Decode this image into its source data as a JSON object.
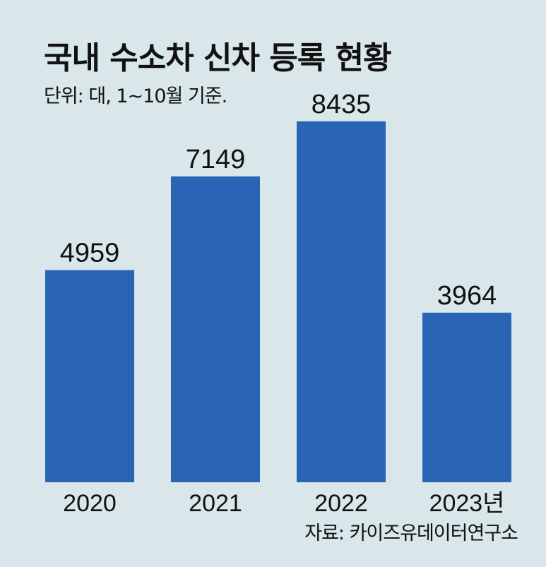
{
  "title": "국내 수소차 신차 등록 현황",
  "subtitle": "단위: 대, 1~10월 기준.",
  "source": "자료: 카이즈유데이터연구소",
  "colors": {
    "bar": "#2a64b4",
    "background": "#d9e6ea"
  },
  "chart_data": {
    "type": "bar",
    "categories": [
      "2020",
      "2021",
      "2022",
      "2023년"
    ],
    "values": [
      4959,
      7149,
      8435,
      3964
    ],
    "value_labels": [
      "4959",
      "7149",
      "8435",
      "3964"
    ],
    "title": "국내 수소차 신차 등록 현황",
    "xlabel": "",
    "ylabel": "",
    "ylim": [
      0,
      9000
    ],
    "grid": false,
    "legend": "none"
  }
}
